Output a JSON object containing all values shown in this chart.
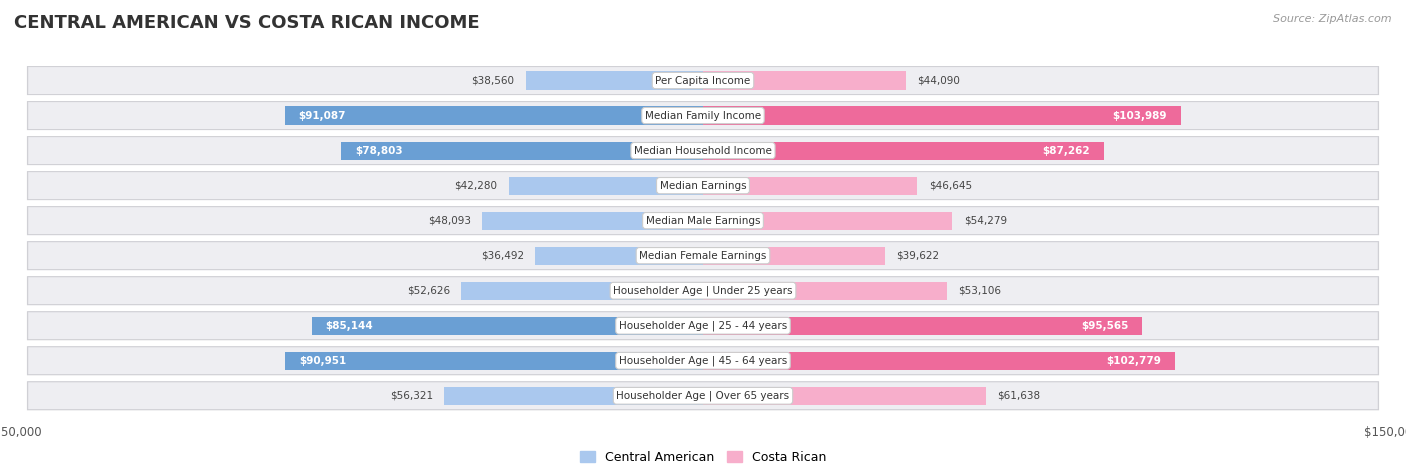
{
  "title": "CENTRAL AMERICAN VS COSTA RICAN INCOME",
  "source": "Source: ZipAtlas.com",
  "categories": [
    "Per Capita Income",
    "Median Family Income",
    "Median Household Income",
    "Median Earnings",
    "Median Male Earnings",
    "Median Female Earnings",
    "Householder Age | Under 25 years",
    "Householder Age | 25 - 44 years",
    "Householder Age | 45 - 64 years",
    "Householder Age | Over 65 years"
  ],
  "central_american": [
    38560,
    91087,
    78803,
    42280,
    48093,
    36492,
    52626,
    85144,
    90951,
    56321
  ],
  "costa_rican": [
    44090,
    103989,
    87262,
    46645,
    54279,
    39622,
    53106,
    95565,
    102779,
    61638
  ],
  "ca_light_color": "#AAC8EE",
  "ca_dark_color": "#6A9FD4",
  "cr_light_color": "#F7AECB",
  "cr_dark_color": "#EE6A9B",
  "bar_height": 0.52,
  "xlim": 150000,
  "row_bg": "#EEEEF2",
  "row_border": "#DDDDDF",
  "legend_label_central": "Central American",
  "legend_label_costa": "Costa Rican",
  "inside_label_threshold": 65000
}
